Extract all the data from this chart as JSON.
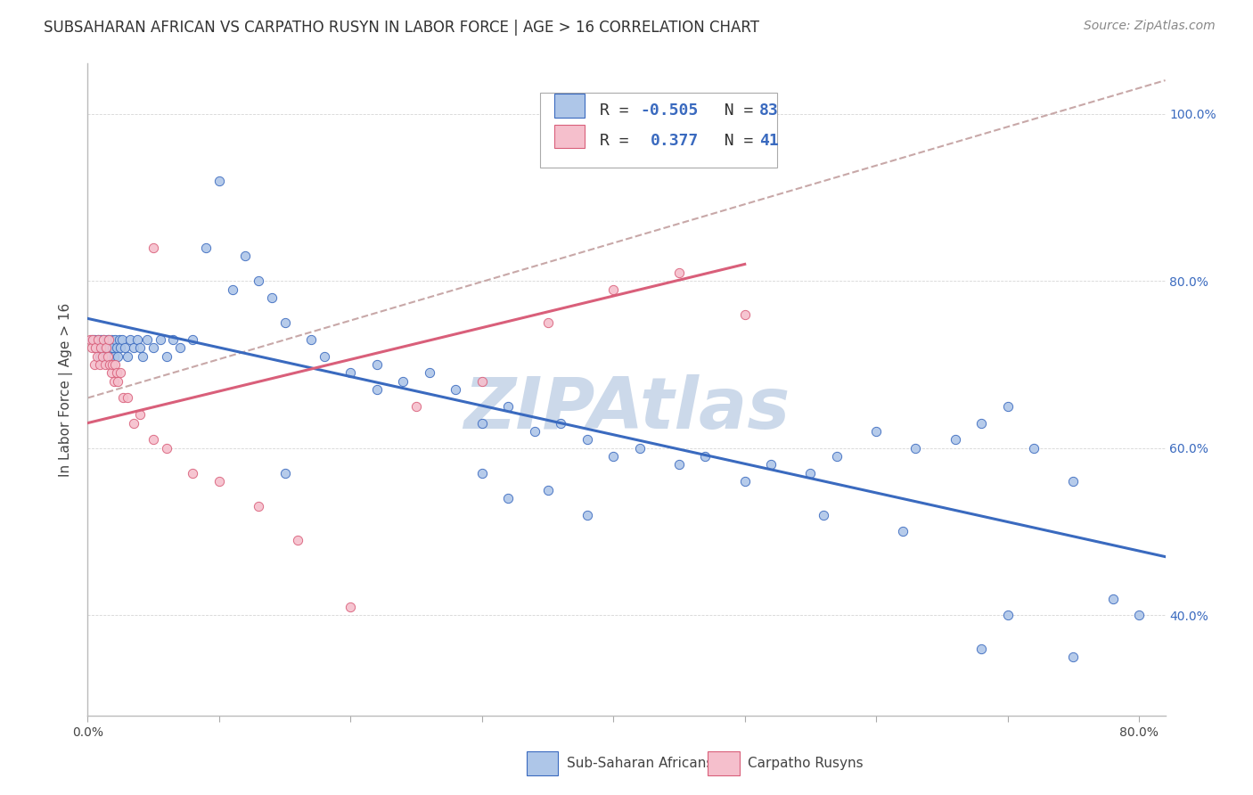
{
  "title": "SUBSAHARAN AFRICAN VS CARPATHO RUSYN IN LABOR FORCE | AGE > 16 CORRELATION CHART",
  "source": "Source: ZipAtlas.com",
  "ylabel": "In Labor Force | Age > 16",
  "xlim": [
    0.0,
    0.82
  ],
  "ylim": [
    0.28,
    1.06
  ],
  "xticks": [
    0.0,
    0.1,
    0.2,
    0.3,
    0.4,
    0.5,
    0.6,
    0.7,
    0.8
  ],
  "xtick_labels": [
    "0.0%",
    "",
    "",
    "",
    "",
    "",
    "",
    "",
    "80.0%"
  ],
  "ytick_labels": [
    "40.0%",
    "60.0%",
    "80.0%",
    "100.0%"
  ],
  "yticks": [
    0.4,
    0.6,
    0.8,
    1.0
  ],
  "watermark": "ZIPAtlas",
  "blue_scatter_x": [
    0.003,
    0.005,
    0.006,
    0.008,
    0.009,
    0.01,
    0.011,
    0.012,
    0.013,
    0.014,
    0.015,
    0.016,
    0.017,
    0.018,
    0.019,
    0.02,
    0.021,
    0.022,
    0.023,
    0.024,
    0.025,
    0.026,
    0.028,
    0.03,
    0.032,
    0.035,
    0.038,
    0.04,
    0.042,
    0.045,
    0.05,
    0.055,
    0.06,
    0.065,
    0.07,
    0.08,
    0.09,
    0.1,
    0.11,
    0.12,
    0.13,
    0.14,
    0.15,
    0.17,
    0.18,
    0.2,
    0.22,
    0.24,
    0.26,
    0.28,
    0.3,
    0.32,
    0.34,
    0.36,
    0.38,
    0.4,
    0.42,
    0.45,
    0.47,
    0.5,
    0.52,
    0.55,
    0.57,
    0.6,
    0.63,
    0.66,
    0.68,
    0.7,
    0.72,
    0.75,
    0.78,
    0.8,
    0.3,
    0.32,
    0.35,
    0.22,
    0.38,
    0.15,
    0.56,
    0.62,
    0.7,
    0.68,
    0.75
  ],
  "blue_scatter_y": [
    0.73,
    0.73,
    0.72,
    0.73,
    0.71,
    0.73,
    0.72,
    0.73,
    0.72,
    0.71,
    0.73,
    0.72,
    0.71,
    0.73,
    0.72,
    0.71,
    0.73,
    0.72,
    0.71,
    0.73,
    0.72,
    0.73,
    0.72,
    0.71,
    0.73,
    0.72,
    0.73,
    0.72,
    0.71,
    0.73,
    0.72,
    0.73,
    0.71,
    0.73,
    0.72,
    0.73,
    0.84,
    0.92,
    0.79,
    0.83,
    0.8,
    0.78,
    0.75,
    0.73,
    0.71,
    0.69,
    0.7,
    0.68,
    0.69,
    0.67,
    0.63,
    0.65,
    0.62,
    0.63,
    0.61,
    0.59,
    0.6,
    0.58,
    0.59,
    0.56,
    0.58,
    0.57,
    0.59,
    0.62,
    0.6,
    0.61,
    0.63,
    0.65,
    0.6,
    0.56,
    0.42,
    0.4,
    0.57,
    0.54,
    0.55,
    0.67,
    0.52,
    0.57,
    0.52,
    0.5,
    0.4,
    0.36,
    0.35
  ],
  "pink_scatter_x": [
    0.002,
    0.003,
    0.004,
    0.005,
    0.006,
    0.007,
    0.008,
    0.009,
    0.01,
    0.011,
    0.012,
    0.013,
    0.014,
    0.015,
    0.016,
    0.017,
    0.018,
    0.019,
    0.02,
    0.021,
    0.022,
    0.023,
    0.025,
    0.027,
    0.03,
    0.035,
    0.04,
    0.05,
    0.06,
    0.08,
    0.1,
    0.13,
    0.16,
    0.2,
    0.25,
    0.3,
    0.35,
    0.4,
    0.45,
    0.5,
    0.05
  ],
  "pink_scatter_y": [
    0.73,
    0.72,
    0.73,
    0.7,
    0.72,
    0.71,
    0.73,
    0.7,
    0.72,
    0.71,
    0.73,
    0.7,
    0.72,
    0.71,
    0.73,
    0.7,
    0.69,
    0.7,
    0.68,
    0.7,
    0.69,
    0.68,
    0.69,
    0.66,
    0.66,
    0.63,
    0.64,
    0.61,
    0.6,
    0.57,
    0.56,
    0.53,
    0.49,
    0.41,
    0.65,
    0.68,
    0.75,
    0.79,
    0.81,
    0.76,
    0.84
  ],
  "blue_line_x": [
    0.0,
    0.82
  ],
  "blue_line_y": [
    0.755,
    0.47
  ],
  "pink_line_x": [
    0.0,
    0.5
  ],
  "pink_line_y": [
    0.63,
    0.82
  ],
  "dashed_line_x": [
    0.0,
    0.82
  ],
  "dashed_line_y": [
    0.66,
    1.04
  ],
  "blue_color": "#aec6e8",
  "blue_line_color": "#3a6abf",
  "pink_color": "#f5bfcc",
  "pink_line_color": "#d95f7a",
  "dashed_color": "#c8a8a8",
  "background_color": "#ffffff",
  "watermark_color": "#ccd9ea",
  "title_fontsize": 12,
  "label_fontsize": 11,
  "tick_fontsize": 10,
  "source_fontsize": 10,
  "legend_r1_val": "-0.505",
  "legend_n1_val": "83",
  "legend_r2_val": "0.377",
  "legend_n2_val": "41",
  "legend_blue_text": "R = ",
  "legend_pink_text": "R =  ",
  "legend_n_text": "N = ",
  "bottom_legend_blue": "Sub-Saharan Africans",
  "bottom_legend_pink": "Carpatho Rusyns"
}
